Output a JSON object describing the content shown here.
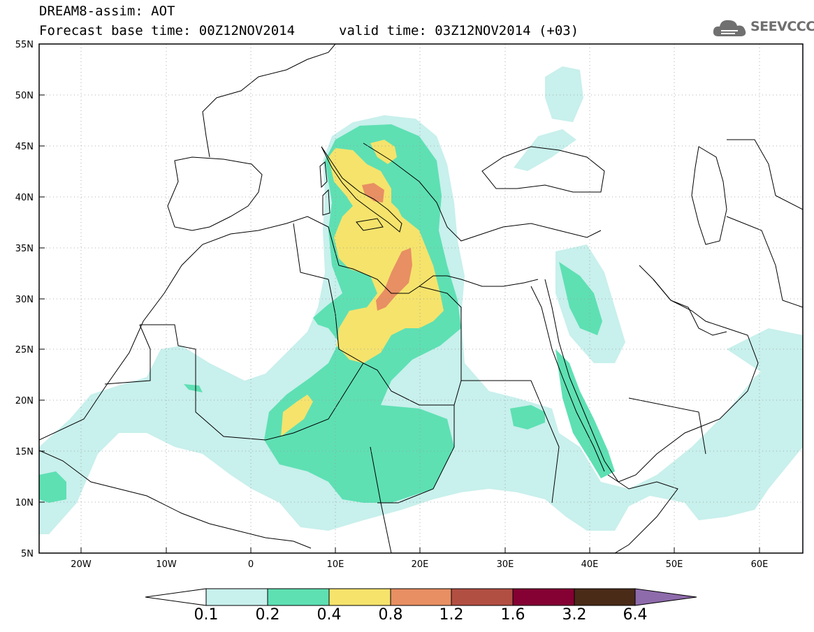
{
  "header": {
    "model_title": "DREAM8-assim: AOT",
    "base_time": "Forecast base time: 00Z12NOV2014",
    "valid_time": "valid time: 03Z12NOV2014 (+03)"
  },
  "logo": {
    "text": "SEEVCCC",
    "icon": "cloud-icon"
  },
  "map": {
    "lon_range": [
      -25,
      65
    ],
    "lat_range": [
      5,
      55
    ],
    "lon_ticks": [
      "20W",
      "10W",
      "0",
      "10E",
      "20E",
      "30E",
      "40E",
      "50E",
      "60E"
    ],
    "lat_ticks": [
      "55N",
      "50N",
      "45N",
      "40N",
      "35N",
      "30N",
      "25N",
      "20N",
      "15N",
      "10N",
      "5N"
    ],
    "background": "#ffffff",
    "coastline_color": "#000000"
  },
  "colorbar": {
    "labels": [
      "0.1",
      "0.2",
      "0.4",
      "0.8",
      "1.2",
      "1.6",
      "3.2",
      "6.4"
    ],
    "colors": [
      "#ffffff",
      "#c8f0ec",
      "#5ee0b3",
      "#f5e36c",
      "#e88f63",
      "#b24f43",
      "#850033",
      "#4a2b18",
      "#8e6bab"
    ]
  }
}
